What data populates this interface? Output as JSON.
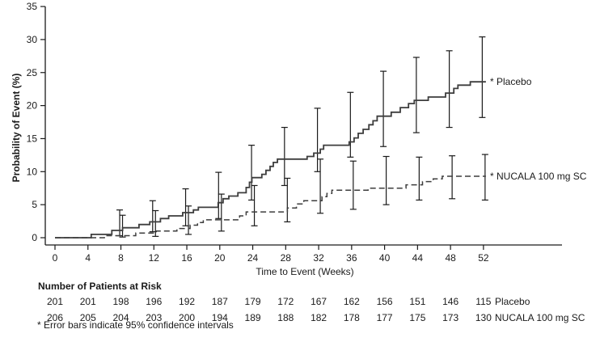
{
  "chart_data": {
    "type": "line",
    "subtype": "kaplan-meier-step",
    "title": "",
    "xlabel": "Time to Event (Weeks)",
    "ylabel": "Probability of Event (%)",
    "xlim": [
      0,
      56
    ],
    "ylim": [
      0,
      35
    ],
    "xticks": [
      0,
      4,
      8,
      12,
      16,
      20,
      24,
      28,
      32,
      36,
      40,
      44,
      48,
      52
    ],
    "yticks": [
      0,
      5,
      10,
      15,
      20,
      25,
      30,
      35
    ],
    "grid": false,
    "curve_end_week": 52.3,
    "line_color": "#3d3d3d",
    "error_bar_color": "#1a1a1a",
    "series": [
      {
        "name": "Placebo",
        "label": "* Placebo",
        "style": "solid",
        "start": [
          0,
          0
        ],
        "steps": [
          [
            4.4,
            0.5
          ],
          [
            6.9,
            1.1
          ],
          [
            8.2,
            1.5
          ],
          [
            10.2,
            2.0
          ],
          [
            11.5,
            2.4
          ],
          [
            12.8,
            2.9
          ],
          [
            13.8,
            3.3
          ],
          [
            15.5,
            3.8
          ],
          [
            16.8,
            4.2
          ],
          [
            17.4,
            4.6
          ],
          [
            19.8,
            5.3
          ],
          [
            20.4,
            5.9
          ],
          [
            21.1,
            6.3
          ],
          [
            22.2,
            6.8
          ],
          [
            23.2,
            7.6
          ],
          [
            23.6,
            8.4
          ],
          [
            23.9,
            9.1
          ],
          [
            25.1,
            9.6
          ],
          [
            25.6,
            10.2
          ],
          [
            26.1,
            10.8
          ],
          [
            26.5,
            11.4
          ],
          [
            27.0,
            11.9
          ],
          [
            30.6,
            12.3
          ],
          [
            31.4,
            12.8
          ],
          [
            32.2,
            13.4
          ],
          [
            32.6,
            14.0
          ],
          [
            35.7,
            14.5
          ],
          [
            36.3,
            15.1
          ],
          [
            36.8,
            15.8
          ],
          [
            37.4,
            16.4
          ],
          [
            38.1,
            17.1
          ],
          [
            38.6,
            17.7
          ],
          [
            39.1,
            18.4
          ],
          [
            40.8,
            19.0
          ],
          [
            41.9,
            19.7
          ],
          [
            42.9,
            20.3
          ],
          [
            43.6,
            20.8
          ],
          [
            45.3,
            21.3
          ],
          [
            47.4,
            21.9
          ],
          [
            48.4,
            22.6
          ],
          [
            48.9,
            23.1
          ],
          [
            50.4,
            23.6
          ]
        ],
        "final_value_pct": 23.6
      },
      {
        "name": "NUCALA 100 mg SC",
        "label": "* NUCALA 100 mg SC",
        "style": "dashed",
        "start": [
          0,
          0
        ],
        "steps": [
          [
            6.0,
            0.3
          ],
          [
            9.8,
            0.7
          ],
          [
            12.3,
            1.0
          ],
          [
            14.8,
            1.4
          ],
          [
            16.4,
            1.9
          ],
          [
            17.3,
            2.3
          ],
          [
            18.0,
            2.7
          ],
          [
            22.4,
            3.3
          ],
          [
            23.2,
            3.9
          ],
          [
            28.2,
            4.5
          ],
          [
            29.3,
            5.1
          ],
          [
            30.2,
            5.6
          ],
          [
            32.4,
            6.2
          ],
          [
            33.0,
            6.7
          ],
          [
            33.6,
            7.2
          ],
          [
            38.0,
            7.5
          ],
          [
            42.6,
            8.0
          ],
          [
            44.6,
            8.5
          ],
          [
            45.9,
            8.9
          ],
          [
            47.0,
            9.3
          ]
        ],
        "final_value_pct": 9.3
      }
    ],
    "error_bars_95ci": [
      {
        "week": 8,
        "placebo": [
          0.3,
          4.2
        ],
        "nucala": [
          0.1,
          3.4
        ]
      },
      {
        "week": 12,
        "placebo": [
          0.9,
          5.6
        ],
        "nucala": [
          0.2,
          4.1
        ]
      },
      {
        "week": 16,
        "placebo": [
          1.8,
          7.4
        ],
        "nucala": [
          0.5,
          4.8
        ]
      },
      {
        "week": 20,
        "placebo": [
          2.9,
          9.9
        ],
        "nucala": [
          1.0,
          6.6
        ]
      },
      {
        "week": 24,
        "placebo": [
          5.7,
          14.0
        ],
        "nucala": [
          1.8,
          7.9
        ]
      },
      {
        "week": 28,
        "placebo": [
          7.9,
          16.7
        ],
        "nucala": [
          2.4,
          9.0
        ]
      },
      {
        "week": 32,
        "placebo": [
          10.0,
          19.6
        ],
        "nucala": [
          3.7,
          11.9
        ]
      },
      {
        "week": 36,
        "placebo": [
          12.2,
          22.0
        ],
        "nucala": [
          4.3,
          11.6
        ]
      },
      {
        "week": 40,
        "placebo": [
          13.8,
          25.2
        ],
        "nucala": [
          5.0,
          12.3
        ]
      },
      {
        "week": 44,
        "placebo": [
          15.9,
          27.3
        ],
        "nucala": [
          5.7,
          12.2
        ]
      },
      {
        "week": 48,
        "placebo": [
          16.7,
          28.3
        ],
        "nucala": [
          5.9,
          12.4
        ]
      },
      {
        "week": 52,
        "placebo": [
          18.2,
          30.4
        ],
        "nucala": [
          5.7,
          12.6
        ]
      }
    ]
  },
  "risk_table": {
    "title": "Number of Patients at Risk",
    "weeks": [
      0,
      4,
      8,
      12,
      16,
      20,
      24,
      28,
      32,
      36,
      40,
      44,
      48,
      52
    ],
    "rows": [
      {
        "label": "Placebo",
        "values": [
          201,
          201,
          198,
          196,
          192,
          187,
          179,
          172,
          167,
          162,
          156,
          151,
          146,
          115
        ]
      },
      {
        "label": "NUCALA 100 mg SC",
        "values": [
          206,
          205,
          204,
          203,
          200,
          194,
          189,
          188,
          182,
          178,
          177,
          175,
          173,
          130
        ]
      }
    ]
  },
  "footnote": "* Error bars indicate 95% confidence intervals"
}
